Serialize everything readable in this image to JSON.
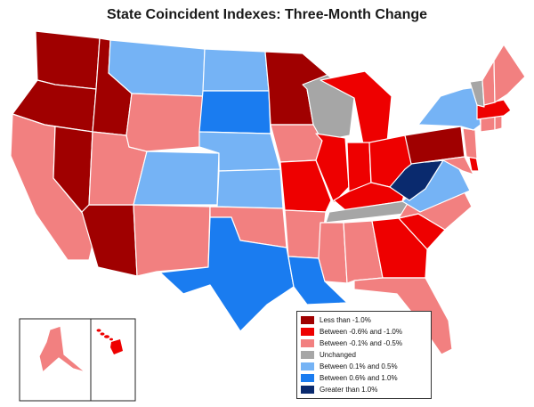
{
  "title": "State Coincident Indexes: Three-Month Change",
  "categories": {
    "d1": {
      "label": "Less than -1.0%",
      "color": "#a00000"
    },
    "d2": {
      "label": "Between -0.6% and -1.0%",
      "color": "#ee0000"
    },
    "d3": {
      "label": "Between -0.1% and -0.5%",
      "color": "#f28080"
    },
    "u": {
      "label": "Unchanged",
      "color": "#a6a6a6"
    },
    "i1": {
      "label": "Between 0.1% and 0.5%",
      "color": "#75b3f5"
    },
    "i2": {
      "label": "Between 0.6% and 1.0%",
      "color": "#1a7cf0"
    },
    "i3": {
      "label": "Greater than 1.0%",
      "color": "#0a2a6e"
    }
  },
  "legend_order": [
    "d1",
    "d2",
    "d3",
    "u",
    "i1",
    "i2",
    "i3"
  ],
  "states": {
    "WA": "d1",
    "OR": "d1",
    "ID": "d1",
    "NV": "d1",
    "AZ": "d1",
    "MN": "d1",
    "PA": "d1",
    "MO": "d2",
    "IL": "d2",
    "IN": "d2",
    "OH": "d2",
    "MI": "d2",
    "KY": "d2",
    "GA": "d2",
    "SC": "d2",
    "MA": "d2",
    "HI": "d2",
    "DE": "d2",
    "CA": "d3",
    "UT": "d3",
    "WY": "d3",
    "NM": "d3",
    "OK": "d3",
    "IA": "d3",
    "AR": "d3",
    "MS": "d3",
    "AL": "d3",
    "FL": "d3",
    "NC": "d3",
    "ME": "d3",
    "NH": "d3",
    "NJ": "d3",
    "MD": "d3",
    "CT": "d3",
    "RI": "d3",
    "AK": "d3",
    "WI": "u",
    "TN": "u",
    "VT": "u",
    "MT": "i1",
    "ND": "i1",
    "CO": "i1",
    "NE": "i1",
    "KS": "i1",
    "NY": "i1",
    "VA": "i1",
    "SD": "i2",
    "TX": "i2",
    "LA": "i2",
    "WV": "i3"
  }
}
